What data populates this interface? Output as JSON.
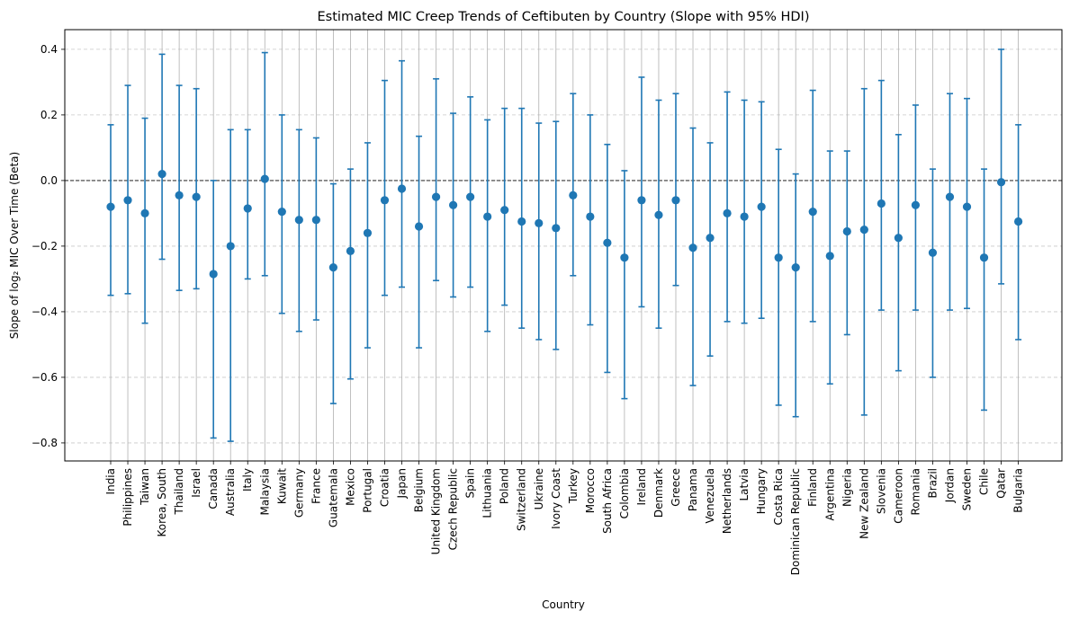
{
  "chart_data": {
    "type": "scatter",
    "title": "Estimated MIC Creep Trends of Ceftibuten by Country (Slope with 95% HDI)",
    "xlabel": "Country",
    "ylabel": "Slope of log₂ MIC Over Time (Beta)",
    "ylim": [
      -0.855,
      0.46
    ],
    "yticks": [
      -0.8,
      -0.6,
      -0.4,
      -0.2,
      0.0,
      0.2,
      0.4
    ],
    "ytick_labels": [
      "−0.8",
      "−0.6",
      "−0.4",
      "−0.2",
      "0.0",
      "0.2",
      "0.4"
    ],
    "grid": true,
    "reference_line": 0.0,
    "colors": {
      "marker": "#1f77b4",
      "grid_y": "#c8c8c8",
      "grid_x": "#b0b0b0",
      "reference": "#000000"
    },
    "categories": [
      "India",
      "Philippines",
      "Taiwan",
      "Korea, South",
      "Thailand",
      "Israel",
      "Canada",
      "Australia",
      "Italy",
      "Malaysia",
      "Kuwait",
      "Germany",
      "France",
      "Guatemala",
      "Mexico",
      "Portugal",
      "Croatia",
      "Japan",
      "Belgium",
      "United Kingdom",
      "Czech Republic",
      "Spain",
      "Lithuania",
      "Poland",
      "Switzerland",
      "Ukraine",
      "Ivory Coast",
      "Turkey",
      "Morocco",
      "South Africa",
      "Colombia",
      "Ireland",
      "Denmark",
      "Greece",
      "Panama",
      "Venezuela",
      "Netherlands",
      "Latvia",
      "Hungary",
      "Costa Rica",
      "Dominican Republic",
      "Finland",
      "Argentina",
      "Nigeria",
      "New Zealand",
      "Slovenia",
      "Cameroon",
      "Romania",
      "Brazil",
      "Jordan",
      "Sweden",
      "Chile",
      "Qatar",
      "Bulgaria"
    ],
    "series": [
      {
        "values": [
          -0.08,
          -0.06,
          -0.1,
          0.02,
          -0.045,
          -0.05,
          -0.285,
          -0.2,
          -0.085,
          0.005,
          -0.095,
          -0.12,
          -0.12,
          -0.265,
          -0.215,
          -0.16,
          -0.06,
          -0.025,
          -0.14,
          -0.05,
          -0.075,
          -0.05,
          -0.11,
          -0.09,
          -0.125,
          -0.13,
          -0.145,
          -0.045,
          -0.11,
          -0.19,
          -0.235,
          -0.06,
          -0.105,
          -0.06,
          -0.205,
          -0.175,
          -0.1,
          -0.11,
          -0.08,
          -0.235,
          -0.265,
          -0.095,
          -0.23,
          -0.155,
          -0.15,
          -0.07,
          -0.175,
          -0.075,
          -0.22,
          -0.05,
          -0.08,
          -0.235,
          -0.005,
          -0.125
        ],
        "lower": [
          -0.35,
          -0.345,
          -0.435,
          -0.24,
          -0.335,
          -0.33,
          -0.785,
          -0.795,
          -0.3,
          -0.29,
          -0.405,
          -0.46,
          -0.425,
          -0.68,
          -0.605,
          -0.51,
          -0.35,
          -0.325,
          -0.51,
          -0.305,
          -0.355,
          -0.325,
          -0.46,
          -0.38,
          -0.45,
          -0.485,
          -0.515,
          -0.29,
          -0.44,
          -0.585,
          -0.665,
          -0.385,
          -0.45,
          -0.32,
          -0.625,
          -0.535,
          -0.43,
          -0.435,
          -0.42,
          -0.685,
          -0.72,
          -0.43,
          -0.62,
          -0.47,
          -0.715,
          -0.395,
          -0.58,
          -0.395,
          -0.6,
          -0.395,
          -0.39,
          -0.7,
          -0.315,
          -0.485
        ],
        "upper": [
          0.17,
          0.29,
          0.19,
          0.385,
          0.29,
          0.28,
          0.0,
          0.155,
          0.155,
          0.39,
          0.2,
          0.155,
          0.13,
          -0.01,
          0.035,
          0.115,
          0.305,
          0.365,
          0.135,
          0.31,
          0.205,
          0.255,
          0.185,
          0.22,
          0.22,
          0.175,
          0.18,
          0.265,
          0.2,
          0.11,
          0.03,
          0.315,
          0.245,
          0.265,
          0.16,
          0.115,
          0.27,
          0.245,
          0.24,
          0.095,
          0.02,
          0.275,
          0.09,
          0.09,
          0.28,
          0.305,
          0.14,
          0.23,
          0.035,
          0.265,
          0.25,
          0.035,
          0.4,
          0.17
        ]
      }
    ]
  }
}
